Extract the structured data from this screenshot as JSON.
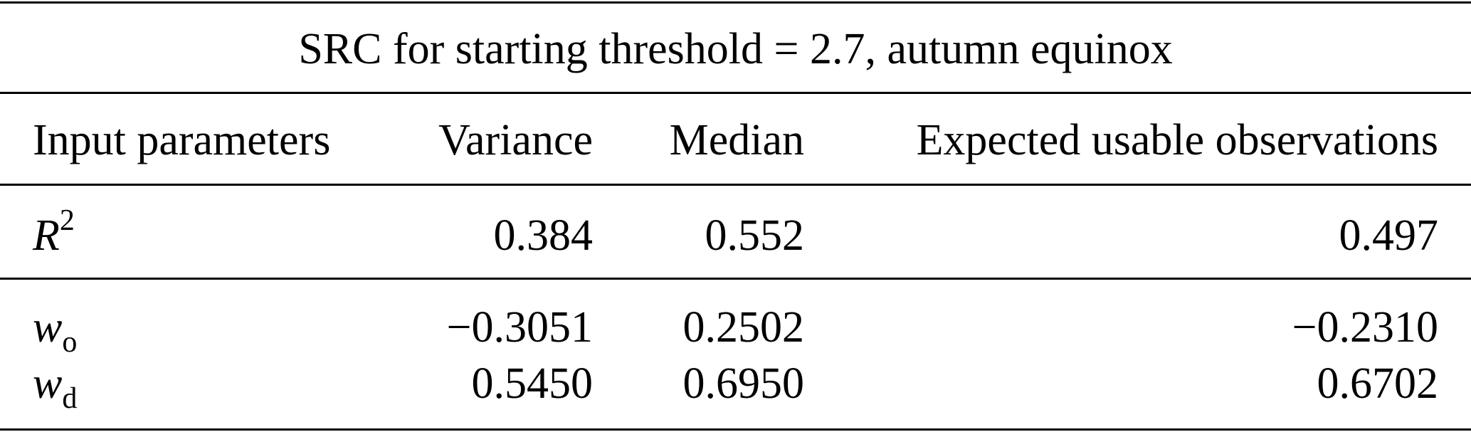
{
  "table": {
    "caption": "SRC for starting threshold = 2.7, autumn equinox",
    "headers": [
      "Input parameters",
      "Variance",
      "Median",
      "Expected usable observations"
    ],
    "rows": [
      {
        "param_base": "R",
        "param_sup": "2",
        "param_sub": "",
        "values": [
          "0.384",
          "0.552",
          "0.497"
        ]
      },
      {
        "param_base": "w",
        "param_sup": "",
        "param_sub": "o",
        "values": [
          "−0.3051",
          "0.2502",
          "−0.2310"
        ]
      },
      {
        "param_base": "w",
        "param_sup": "",
        "param_sub": "d",
        "values": [
          "0.5450",
          "0.6950",
          "0.6702"
        ]
      }
    ]
  }
}
